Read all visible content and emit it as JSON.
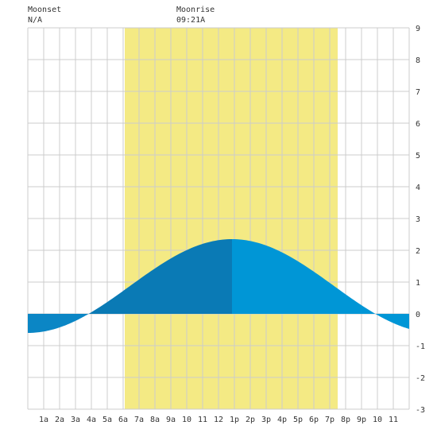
{
  "header": {
    "moonset_label": "Moonset",
    "moonset_value": "N/A",
    "moonrise_label": "Moonrise",
    "moonrise_value": "09:21A"
  },
  "colors": {
    "background": "#ffffff",
    "grid": "#cccccc",
    "daylight": "#f4ea84",
    "tide_day_rising": "#0a7ab5",
    "tide_day_falling": "#0096d6",
    "tide_night": "#0b86c5",
    "text": "#333333"
  },
  "chart_data": {
    "type": "area",
    "x_unit": "hour",
    "xlim": [
      0,
      24
    ],
    "ylim": [
      -3,
      9
    ],
    "grid": true,
    "x_ticks": [
      {
        "x": 1,
        "label": "1a"
      },
      {
        "x": 2,
        "label": "2a"
      },
      {
        "x": 3,
        "label": "3a"
      },
      {
        "x": 4,
        "label": "4a"
      },
      {
        "x": 5,
        "label": "5a"
      },
      {
        "x": 6,
        "label": "6a"
      },
      {
        "x": 7,
        "label": "7a"
      },
      {
        "x": 8,
        "label": "8a"
      },
      {
        "x": 9,
        "label": "9a"
      },
      {
        "x": 10,
        "label": "10"
      },
      {
        "x": 11,
        "label": "11"
      },
      {
        "x": 12,
        "label": "12"
      },
      {
        "x": 13,
        "label": "1p"
      },
      {
        "x": 14,
        "label": "2p"
      },
      {
        "x": 15,
        "label": "3p"
      },
      {
        "x": 16,
        "label": "4p"
      },
      {
        "x": 17,
        "label": "5p"
      },
      {
        "x": 18,
        "label": "6p"
      },
      {
        "x": 19,
        "label": "7p"
      },
      {
        "x": 20,
        "label": "8p"
      },
      {
        "x": 21,
        "label": "9p"
      },
      {
        "x": 22,
        "label": "10"
      },
      {
        "x": 23,
        "label": "11"
      }
    ],
    "y_ticks": [
      -3,
      -2,
      -1,
      0,
      1,
      2,
      3,
      4,
      5,
      6,
      7,
      8,
      9
    ],
    "daylight": {
      "start": 6.1,
      "end": 19.5
    },
    "tide_extremes": {
      "low_time": 0.0,
      "low_value": -0.6,
      "high_time": 12.85,
      "high_value": 2.35
    },
    "series": [
      {
        "values": [
          {
            "x": 0,
            "y": -0.6
          },
          {
            "x": 1,
            "y": -0.5
          },
          {
            "x": 2,
            "y": -0.28
          },
          {
            "x": 3,
            "y": 0.0
          },
          {
            "x": 4,
            "y": 0.3
          },
          {
            "x": 5,
            "y": 0.62
          },
          {
            "x": 6,
            "y": 0.95
          },
          {
            "x": 7,
            "y": 1.28
          },
          {
            "x": 8,
            "y": 1.6
          },
          {
            "x": 9,
            "y": 1.9
          },
          {
            "x": 10,
            "y": 2.12
          },
          {
            "x": 11,
            "y": 2.28
          },
          {
            "x": 12,
            "y": 2.35
          },
          {
            "x": 13,
            "y": 2.35
          },
          {
            "x": 14,
            "y": 2.24
          },
          {
            "x": 15,
            "y": 2.0
          },
          {
            "x": 16,
            "y": 1.68
          },
          {
            "x": 17,
            "y": 1.3
          },
          {
            "x": 18,
            "y": 0.9
          },
          {
            "x": 19,
            "y": 0.5
          },
          {
            "x": 20,
            "y": 0.1
          },
          {
            "x": 21,
            "y": -0.1
          },
          {
            "x": 22,
            "y": -0.3
          },
          {
            "x": 23,
            "y": -0.45
          },
          {
            "x": 24,
            "y": -0.5
          }
        ]
      }
    ]
  }
}
